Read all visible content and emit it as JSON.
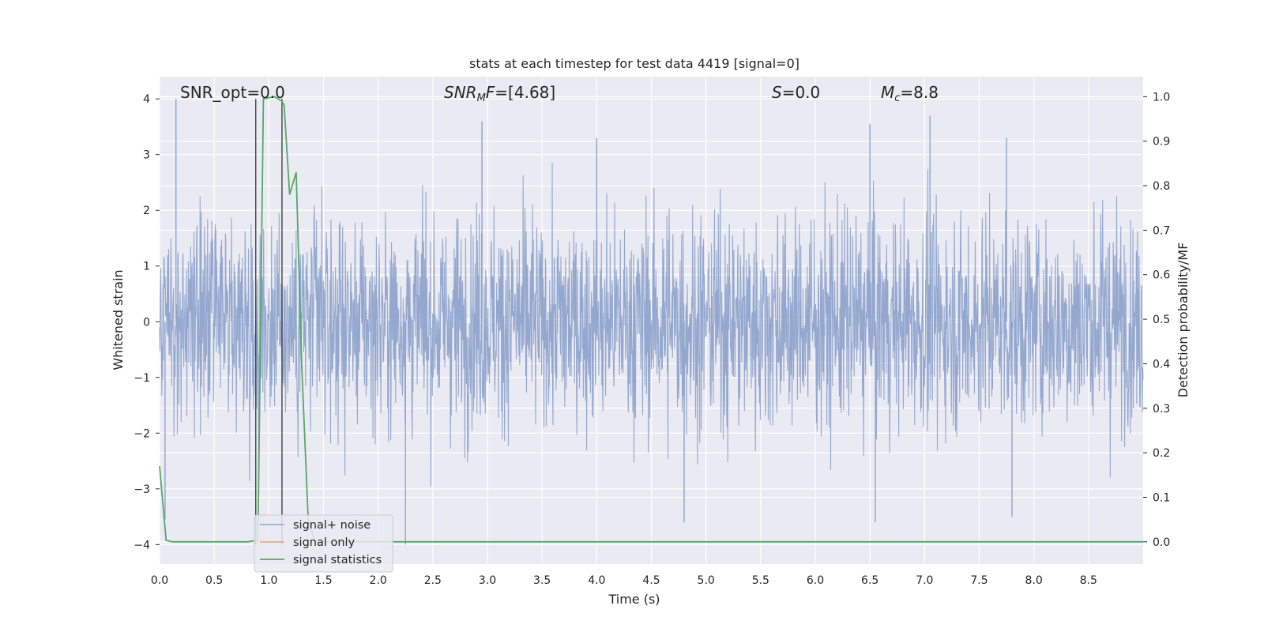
{
  "chart_data": {
    "type": "line",
    "title": "stats at each timestep for test data 4419 [signal=0]",
    "xlabel": "Time (s)",
    "ylabel": "Whitened strain",
    "ylabel_right": "Detection probability/MF",
    "xlim": [
      0,
      9.0
    ],
    "ylim": [
      -4.35,
      4.4
    ],
    "ylim_right": [
      -0.05,
      1.045
    ],
    "x_ticks": [
      "0.0",
      "0.5",
      "1.0",
      "1.5",
      "2.0",
      "2.5",
      "3.0",
      "3.5",
      "4.0",
      "4.5",
      "5.0",
      "5.5",
      "6.0",
      "6.5",
      "7.0",
      "7.5",
      "8.0",
      "8.5"
    ],
    "y_ticks": [
      "−4",
      "−3",
      "−2",
      "−1",
      "0",
      "1",
      "2",
      "3",
      "4"
    ],
    "y_right_ticks": [
      "0.0",
      "0.1",
      "0.2",
      "0.3",
      "0.4",
      "0.5",
      "0.6",
      "0.7",
      "0.8",
      "0.9",
      "1.0"
    ],
    "annotations": {
      "snr_opt": "SNR_opt=0.0",
      "snr_mf_base": "SNR",
      "snr_mf_sub": "M",
      "snr_mf_rest": "F=[4.68]",
      "s_sym": "S",
      "s_val": "=0.0",
      "mc_sym": "M",
      "mc_sub": "c",
      "mc_val": "=8.8"
    },
    "vertical_lines_x": [
      0.88,
      1.12
    ],
    "series": [
      {
        "name": "signal+ noise",
        "color": "#8fa4cc",
        "description": "whitened strain noise, approx gaussian, std ~0.9 across 0–9 s",
        "peaks_x": [
          0.15,
          2.95,
          4.0,
          6.5,
          7.05,
          7.75
        ],
        "peaks_y": [
          4.0,
          3.6,
          3.3,
          3.55,
          3.7,
          3.3
        ],
        "troughs_x": [
          0.05,
          2.25,
          4.8,
          6.55,
          7.8
        ],
        "troughs_y": [
          -3.55,
          -4.0,
          -3.6,
          -3.6,
          -3.5
        ]
      },
      {
        "name": "signal only",
        "color": "#e8a07c",
        "values": []
      },
      {
        "name": "signal statistics",
        "color": "#55a868",
        "axis": "right",
        "x": [
          0.0,
          0.06,
          0.12,
          0.8,
          0.86,
          0.9,
          0.95,
          1.05,
          1.12,
          1.14,
          1.19,
          1.25,
          1.3,
          1.36,
          1.42,
          1.5,
          9.0
        ],
        "y": [
          0.17,
          0.003,
          0.0,
          0.0,
          0.002,
          0.003,
          0.995,
          1.0,
          0.99,
          0.98,
          0.78,
          0.83,
          0.4,
          0.05,
          0.0,
          0.0,
          0.0
        ]
      }
    ],
    "legend": {
      "placement": "lower-left",
      "entries": [
        "signal+ noise",
        "signal only",
        "signal statistics"
      ]
    },
    "grid": true,
    "background": "#eaeaf2"
  }
}
